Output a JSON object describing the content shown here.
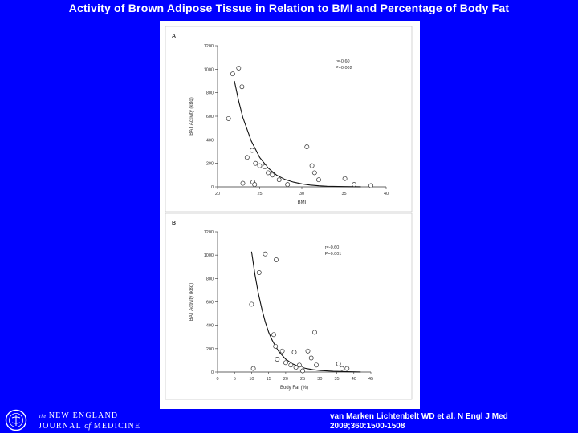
{
  "slide": {
    "title": "Activity of Brown Adipose Tissue in Relation to BMI and Percentage of Body Fat",
    "citation_line1": "van Marken Lichtenbelt WD et al. N Engl J Med",
    "citation_line2": "2009;360:1500-1508"
  },
  "journal": {
    "prefix": "The",
    "line1": "NEW ENGLAND",
    "journal_word": "JOURNAL",
    "of_word": "of",
    "medicine_word": "MEDICINE"
  },
  "colors": {
    "background": "#0000ff",
    "panel": "#ffffff",
    "ink": "#333333"
  },
  "chart_data": [
    {
      "type": "scatter",
      "panel_label": "A",
      "xlabel": "BMI",
      "ylabel": "BAT Activity (kBq)",
      "xlim": [
        20,
        40
      ],
      "ylim": [
        0,
        1200
      ],
      "xticks": [
        20,
        25,
        30,
        35,
        40
      ],
      "yticks": [
        0,
        200,
        400,
        600,
        800,
        1000,
        1200
      ],
      "annotation_r": "r=-0.60",
      "annotation_p": "P=0.002",
      "points": [
        [
          21.3,
          580
        ],
        [
          21.8,
          960
        ],
        [
          22.5,
          1010
        ],
        [
          22.9,
          850
        ],
        [
          23.5,
          250
        ],
        [
          24.1,
          310
        ],
        [
          24.5,
          200
        ],
        [
          25.0,
          180
        ],
        [
          25.6,
          170
        ],
        [
          26.0,
          120
        ],
        [
          27.3,
          60
        ],
        [
          28.3,
          20
        ],
        [
          23.0,
          30
        ],
        [
          24.2,
          40
        ],
        [
          24.4,
          20
        ],
        [
          26.5,
          100
        ],
        [
          30.6,
          340
        ],
        [
          31.2,
          180
        ],
        [
          31.5,
          120
        ],
        [
          32.0,
          60
        ],
        [
          35.1,
          70
        ],
        [
          36.2,
          20
        ],
        [
          38.2,
          10
        ]
      ],
      "fit": [
        [
          22.0,
          900
        ],
        [
          22.5,
          730
        ],
        [
          23.0,
          590
        ],
        [
          24.0,
          390
        ],
        [
          25.0,
          250
        ],
        [
          26.0,
          160
        ],
        [
          27.0,
          100
        ],
        [
          28.0,
          63
        ],
        [
          29.0,
          40
        ],
        [
          30.0,
          25
        ],
        [
          31.0,
          15
        ],
        [
          32.0,
          9
        ],
        [
          33.0,
          5
        ],
        [
          35.0,
          2
        ],
        [
          37.0,
          1
        ]
      ]
    },
    {
      "type": "scatter",
      "panel_label": "B",
      "xlabel": "Body Fat (%)",
      "ylabel": "BAT Activity (kBq)",
      "xlim": [
        0,
        45
      ],
      "ylim": [
        0,
        1200
      ],
      "xticks": [
        0,
        5,
        10,
        15,
        20,
        25,
        30,
        35,
        40,
        45
      ],
      "yticks": [
        0,
        200,
        400,
        600,
        800,
        1000,
        1200
      ],
      "annotation_r": "r=-0.60",
      "annotation_p": "P=0.001",
      "points": [
        [
          10.0,
          580
        ],
        [
          12.2,
          850
        ],
        [
          14.0,
          1010
        ],
        [
          17.2,
          960
        ],
        [
          16.5,
          320
        ],
        [
          17.0,
          220
        ],
        [
          17.5,
          110
        ],
        [
          19.0,
          180
        ],
        [
          20.0,
          80
        ],
        [
          21.5,
          60
        ],
        [
          22.5,
          170
        ],
        [
          23.0,
          40
        ],
        [
          24.5,
          30
        ],
        [
          25.0,
          10
        ],
        [
          26.5,
          180
        ],
        [
          27.5,
          120
        ],
        [
          28.5,
          340
        ],
        [
          29.0,
          60
        ],
        [
          35.5,
          70
        ],
        [
          36.5,
          30
        ],
        [
          38.0,
          30
        ],
        [
          10.5,
          30
        ],
        [
          24.0,
          60
        ]
      ],
      "fit": [
        [
          10.0,
          1030
        ],
        [
          11.0,
          830
        ],
        [
          12.0,
          670
        ],
        [
          13.0,
          540
        ],
        [
          14.0,
          430
        ],
        [
          15.0,
          340
        ],
        [
          16.0,
          275
        ],
        [
          17.0,
          220
        ],
        [
          18.0,
          175
        ],
        [
          20.0,
          110
        ],
        [
          22.0,
          70
        ],
        [
          24.0,
          45
        ],
        [
          26.0,
          30
        ],
        [
          28.0,
          20
        ],
        [
          30.0,
          13
        ],
        [
          34.0,
          6
        ],
        [
          38.0,
          3
        ],
        [
          42.0,
          1
        ]
      ]
    }
  ]
}
